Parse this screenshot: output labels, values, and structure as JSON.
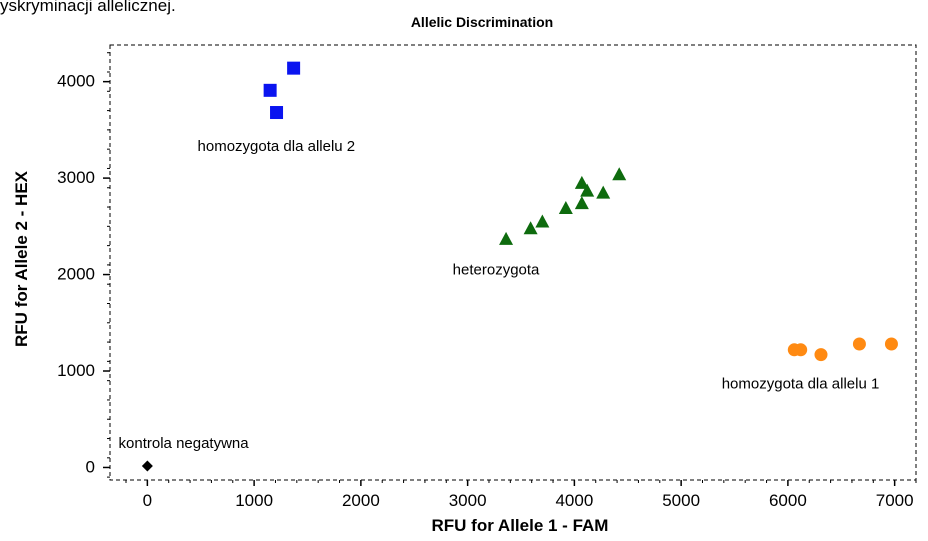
{
  "caption_fragment": "yskryminacji allelicznej.",
  "chart_data": {
    "type": "scatter",
    "title": "Allelic Discrimination",
    "xlabel": "RFU for Allele 1 - FAM",
    "ylabel": "RFU for Allele 2 - HEX",
    "xlim": [
      -350,
      7200
    ],
    "ylim": [
      -130,
      4380
    ],
    "xticks": [
      0,
      1000,
      2000,
      3000,
      4000,
      5000,
      6000,
      7000
    ],
    "yticks": [
      0,
      1000,
      2000,
      3000,
      4000
    ],
    "xtick_labels": [
      "0",
      "1000",
      "2000",
      "3000",
      "4000",
      "5000",
      "6000",
      "7000"
    ],
    "ytick_labels": [
      "0",
      "1000",
      "2000",
      "3000",
      "4000"
    ],
    "grid": false,
    "series": [
      {
        "marker": "square",
        "color": "#0a14f0",
        "points": [
          [
            1150,
            3910
          ],
          [
            1210,
            3680
          ],
          [
            1370,
            4140
          ]
        ]
      },
      {
        "marker": "triangle",
        "color": "#0e6b0e",
        "points": [
          [
            3360,
            2370
          ],
          [
            3590,
            2480
          ],
          [
            3700,
            2550
          ],
          [
            3920,
            2690
          ],
          [
            4070,
            2740
          ],
          [
            4070,
            2950
          ],
          [
            4120,
            2870
          ],
          [
            4270,
            2850
          ],
          [
            4420,
            3040
          ]
        ]
      },
      {
        "marker": "circle",
        "color": "#ff8a12",
        "points": [
          [
            6060,
            1220
          ],
          [
            6120,
            1220
          ],
          [
            6310,
            1170
          ],
          [
            6670,
            1280
          ],
          [
            6970,
            1280
          ]
        ]
      },
      {
        "marker": "diamond",
        "color": "#000000",
        "points": [
          [
            0,
            15
          ]
        ]
      }
    ],
    "annotations": [
      {
        "text": "homozygota dla allelu 2",
        "x": 470,
        "y": 3280
      },
      {
        "text": "heterozygota",
        "x": 2860,
        "y": 2000
      },
      {
        "text": "homozygota dla allelu 1",
        "x": 5380,
        "y": 820
      },
      {
        "text": "kontrola negatywna",
        "x": -270,
        "y": 200
      }
    ]
  }
}
